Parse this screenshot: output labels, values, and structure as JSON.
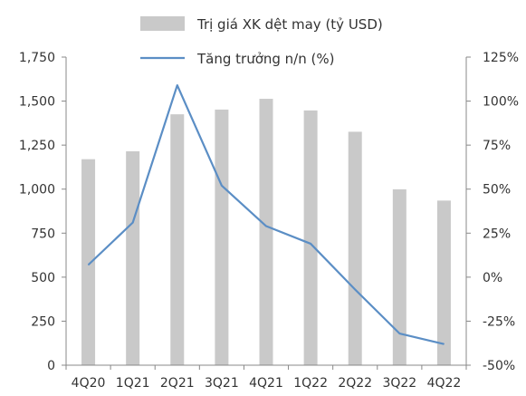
{
  "chart_data": {
    "type": "bar",
    "title": "",
    "categories": [
      "4Q20",
      "1Q21",
      "2Q21",
      "3Q21",
      "4Q21",
      "1Q22",
      "2Q22",
      "3Q22",
      "4Q22"
    ],
    "series": [
      {
        "name": "Trị giá XK dệt may (tỷ USD)",
        "type": "bar",
        "axis": "left",
        "color": "#c9c9c9",
        "values": [
          1170,
          1215,
          1425,
          1452,
          1513,
          1447,
          1326,
          999,
          935
        ]
      },
      {
        "name": "Tăng trưởng n/n (%)",
        "type": "line",
        "axis": "right",
        "color": "#5b8ec5",
        "values": [
          7,
          31,
          109,
          52,
          29,
          19,
          -7,
          -32,
          -38
        ]
      }
    ],
    "y_left": {
      "min": 0,
      "max": 1750,
      "ticks": [
        0,
        250,
        500,
        750,
        1000,
        1250,
        1500,
        1750
      ],
      "tick_labels": [
        "0",
        "250",
        "500",
        "750",
        "1,000",
        "1,250",
        "1,500",
        "1,750"
      ]
    },
    "y_right": {
      "min": -50,
      "max": 125,
      "ticks": [
        -50,
        -25,
        0,
        25,
        50,
        75,
        100,
        125
      ],
      "tick_labels": [
        "-50%",
        "-25%",
        "0%",
        "25%",
        "50%",
        "75%",
        "100%",
        "125%"
      ]
    },
    "grid": false,
    "legend_position": "top"
  }
}
